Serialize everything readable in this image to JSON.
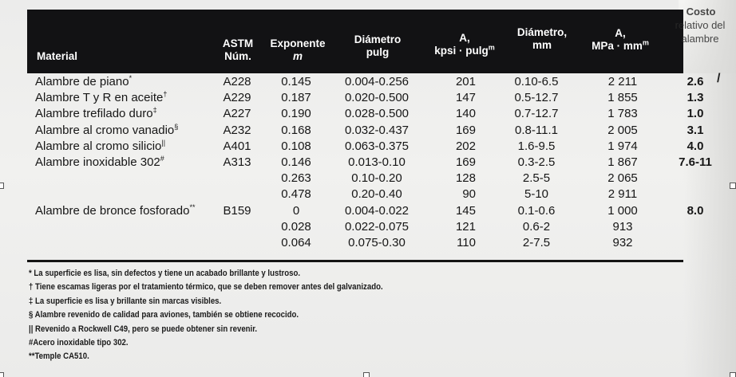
{
  "table": {
    "headers": {
      "material": "Material",
      "astm_line1": "ASTM",
      "astm_line2": "Núm.",
      "exponent_line1": "Exponente",
      "exponent_line2": "m",
      "diam_in_line1": "Diámetro",
      "diam_in_line2": "pulg",
      "a_kpsi_line1": "A,",
      "a_kpsi_line2": "kpsi · pulg",
      "a_kpsi_sup": "m",
      "diam_mm_line1": "Diámetro,",
      "diam_mm_line2": "mm",
      "a_mpa_line1": "A,",
      "a_mpa_line2": "MPa · mm",
      "a_mpa_sup": "m",
      "cost_line1": "Costo",
      "cost_line2": "relativo del",
      "cost_line3": "alambre"
    },
    "rows": [
      {
        "material": "Alambre de piano",
        "mark": "*",
        "astm": "A228",
        "m": "0.145",
        "diam_in": "0.004-0.256",
        "a_kpsi": "201",
        "diam_mm": "0.10-6.5",
        "a_mpa": "2 211",
        "cost": "2.6"
      },
      {
        "material": "Alambre T y R en aceite",
        "mark": "†",
        "astm": "A229",
        "m": "0.187",
        "diam_in": "0.020-0.500",
        "a_kpsi": "147",
        "diam_mm": "0.5-12.7",
        "a_mpa": "1 855",
        "cost": "1.3"
      },
      {
        "material": "Alambre trefilado duro",
        "mark": "‡",
        "astm": "A227",
        "m": "0.190",
        "diam_in": "0.028-0.500",
        "a_kpsi": "140",
        "diam_mm": "0.7-12.7",
        "a_mpa": "1 783",
        "cost": "1.0"
      },
      {
        "material": "Alambre al cromo vanadio",
        "mark": "§",
        "astm": "A232",
        "m": "0.168",
        "diam_in": "0.032-0.437",
        "a_kpsi": "169",
        "diam_mm": "0.8-11.1",
        "a_mpa": "2 005",
        "cost": "3.1"
      },
      {
        "material": "Alambre al cromo silicio",
        "mark": "||",
        "astm": "A401",
        "m": "0.108",
        "diam_in": "0.063-0.375",
        "a_kpsi": "202",
        "diam_mm": "1.6-9.5",
        "a_mpa": "1 974",
        "cost": "4.0"
      },
      {
        "material": "Alambre inoxidable 302",
        "mark": "#",
        "astm": "A313",
        "m": "0.146",
        "diam_in": "0.013-0.10",
        "a_kpsi": "169",
        "diam_mm": "0.3-2.5",
        "a_mpa": "1 867",
        "cost": "7.6-11"
      },
      {
        "material": "",
        "mark": "",
        "astm": "",
        "m": "0.263",
        "diam_in": "0.10-0.20",
        "a_kpsi": "128",
        "diam_mm": "2.5-5",
        "a_mpa": "2 065",
        "cost": ""
      },
      {
        "material": "",
        "mark": "",
        "astm": "",
        "m": "0.478",
        "diam_in": "0.20-0.40",
        "a_kpsi": "90",
        "diam_mm": "5-10",
        "a_mpa": "2 911",
        "cost": ""
      },
      {
        "material": "Alambre de bronce fosforado",
        "mark": "**",
        "astm": "B159",
        "m": "0",
        "diam_in": "0.004-0.022",
        "a_kpsi": "145",
        "diam_mm": "0.1-0.6",
        "a_mpa": "1 000",
        "cost": "8.0"
      },
      {
        "material": "",
        "mark": "",
        "astm": "",
        "m": "0.028",
        "diam_in": "0.022-0.075",
        "a_kpsi": "121",
        "diam_mm": "0.6-2",
        "a_mpa": "913",
        "cost": ""
      },
      {
        "material": "",
        "mark": "",
        "astm": "",
        "m": "0.064",
        "diam_in": "0.075-0.30",
        "a_kpsi": "110",
        "diam_mm": "2-7.5",
        "a_mpa": "932",
        "cost": ""
      }
    ]
  },
  "footnotes": [
    "* La superficie es lisa, sin defectos y tiene un acabado brillante y lustroso.",
    "† Tiene escamas ligeras por el tratamiento térmico, que se deben remover antes del galvanizado.",
    "‡ La superficie es lisa y brillante sin marcas visibles.",
    "§ Alambre revenido de calidad para aviones, también se obtiene recocido.",
    "|| Revenido a Rockwell C49, pero se puede obtener sin revenir.",
    "#Acero inoxidable tipo 302.",
    "**Temple CA510."
  ],
  "margin_mark": "/"
}
